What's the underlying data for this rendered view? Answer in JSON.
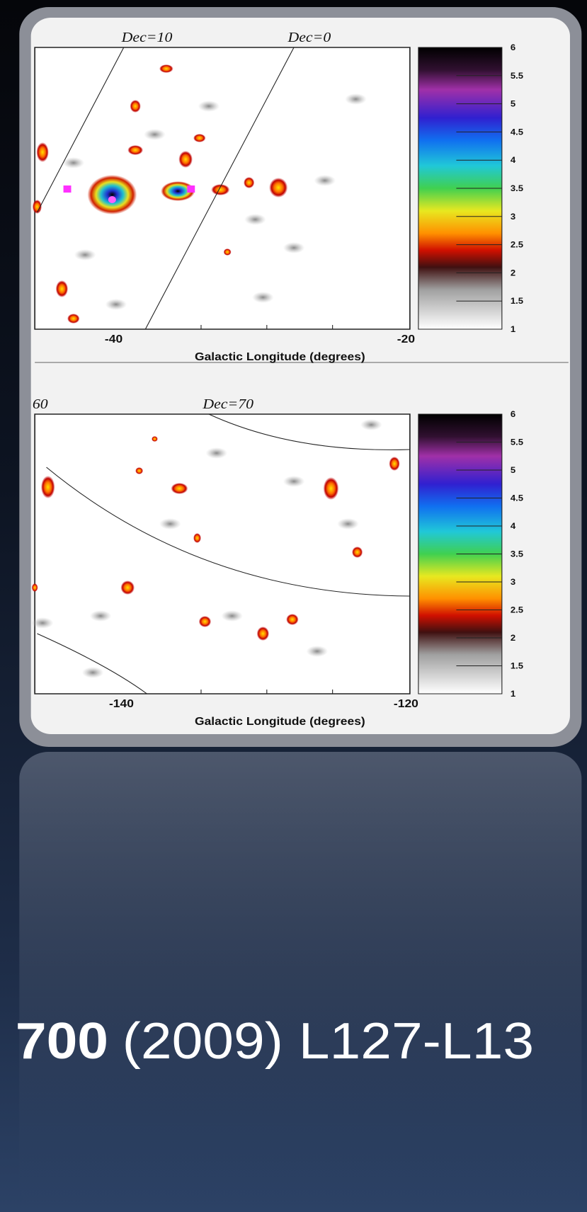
{
  "panels": [
    {
      "dec_labels": [
        "Dec=10",
        "Dec=0"
      ],
      "x_ticks": [
        "-40",
        "-20"
      ],
      "x_label": "Galactic Longitude (degrees)",
      "colorbar_ticks": [
        "6",
        "5.5",
        "5",
        "4.5",
        "4",
        "3.5",
        "3",
        "2.5",
        "2",
        "1.5",
        "1"
      ]
    },
    {
      "dec_labels": [
        "60",
        "Dec=70"
      ],
      "x_ticks": [
        "-140",
        "-120"
      ],
      "x_label": "Galactic Longitude (degrees)",
      "colorbar_ticks": [
        "6",
        "5.5",
        "5",
        "4.5",
        "4",
        "3.5",
        "3",
        "2.5",
        "2",
        "1.5",
        "1"
      ]
    }
  ],
  "caption": {
    "volume": "700",
    "rest": "(2009) L127-L13"
  }
}
